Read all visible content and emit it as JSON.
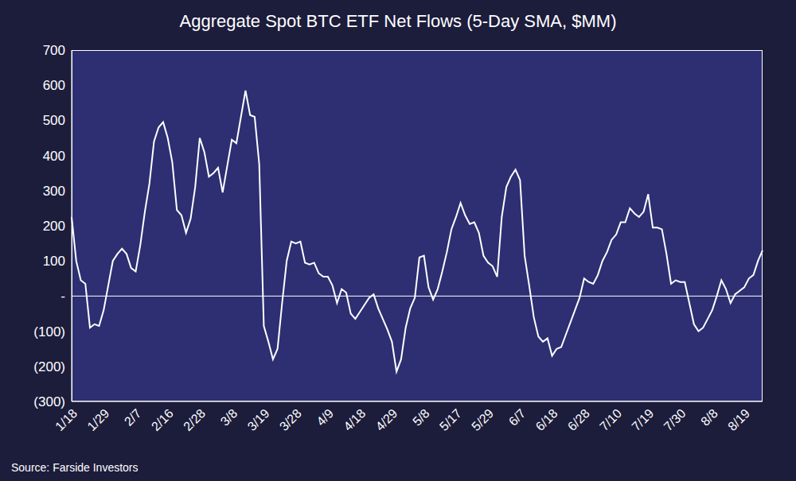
{
  "chart_data": {
    "type": "line",
    "title": "Aggregate Spot BTC ETF Net Flows (5-Day SMA, $MM)",
    "annotations": [
      "Source: Farside Investors"
    ],
    "categories": [
      "1/18",
      null,
      null,
      null,
      null,
      null,
      null,
      "1/29",
      null,
      null,
      null,
      null,
      null,
      null,
      "2/7",
      null,
      null,
      null,
      null,
      null,
      null,
      "2/16",
      null,
      null,
      null,
      null,
      null,
      null,
      "2/28",
      null,
      null,
      null,
      null,
      null,
      null,
      "3/8",
      null,
      null,
      null,
      null,
      null,
      null,
      "3/19",
      null,
      null,
      null,
      null,
      null,
      null,
      "3/28",
      null,
      null,
      null,
      null,
      null,
      null,
      "4/9",
      null,
      null,
      null,
      null,
      null,
      null,
      "4/18",
      null,
      null,
      null,
      null,
      null,
      null,
      "4/29",
      null,
      null,
      null,
      null,
      null,
      null,
      "5/8",
      null,
      null,
      null,
      null,
      null,
      null,
      "5/17",
      null,
      null,
      null,
      null,
      null,
      null,
      "5/29",
      null,
      null,
      null,
      null,
      null,
      null,
      "6/7",
      null,
      null,
      null,
      null,
      null,
      null,
      "6/18",
      null,
      null,
      null,
      null,
      null,
      null,
      "6/28",
      null,
      null,
      null,
      null,
      null,
      null,
      "7/10",
      null,
      null,
      null,
      null,
      null,
      null,
      "7/19",
      null,
      null,
      null,
      null,
      null,
      null,
      "7/30",
      null,
      null,
      null,
      null,
      null,
      null,
      "8/8",
      null,
      null,
      null,
      null,
      null,
      null,
      "8/19",
      null,
      null,
      null,
      null
    ],
    "values": [
      225,
      100,
      45,
      35,
      -90,
      -80,
      -85,
      -40,
      30,
      100,
      120,
      135,
      120,
      80,
      70,
      145,
      240,
      320,
      440,
      480,
      495,
      450,
      380,
      245,
      230,
      180,
      220,
      310,
      450,
      410,
      340,
      350,
      365,
      295,
      370,
      445,
      435,
      510,
      585,
      515,
      510,
      375,
      -85,
      -130,
      -180,
      -150,
      -20,
      100,
      155,
      150,
      155,
      95,
      90,
      95,
      65,
      55,
      55,
      30,
      -20,
      20,
      10,
      -50,
      -65,
      -45,
      -25,
      -5,
      5,
      -35,
      -65,
      -95,
      -130,
      -215,
      -180,
      -90,
      -35,
      -5,
      110,
      115,
      25,
      -10,
      20,
      70,
      125,
      190,
      225,
      265,
      230,
      205,
      210,
      180,
      115,
      95,
      85,
      55,
      225,
      310,
      340,
      360,
      330,
      115,
      30,
      -60,
      -115,
      -130,
      -120,
      -170,
      -150,
      -145,
      -110,
      -75,
      -40,
      -5,
      50,
      40,
      35,
      60,
      100,
      125,
      160,
      175,
      210,
      210,
      250,
      235,
      225,
      240,
      290,
      195,
      195,
      190,
      120,
      35,
      45,
      40,
      40,
      -20,
      -80,
      -100,
      -90,
      -65,
      -40,
      0,
      45,
      20,
      -20,
      5,
      15,
      25,
      50,
      60,
      100,
      130
    ],
    "color": "#ffffff",
    "ylim": [
      -300,
      700
    ],
    "yticks": [
      {
        "value": -300,
        "label": "(300)"
      },
      {
        "value": -200,
        "label": "(200)"
      },
      {
        "value": -100,
        "label": "(100)"
      },
      {
        "value": 0,
        "label": "-"
      },
      100,
      200,
      300,
      400,
      500,
      600,
      700
    ],
    "grid": false
  }
}
